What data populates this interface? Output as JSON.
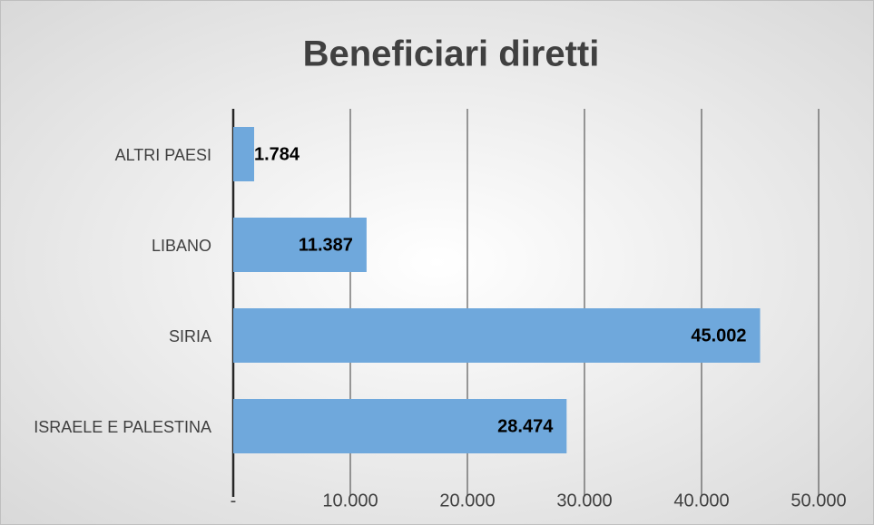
{
  "chart_data": {
    "type": "bar",
    "orientation": "horizontal",
    "title": "Beneficiari diretti",
    "categories": [
      "ALTRI PAESI",
      "LIBANO",
      "SIRIA",
      "ISRAELE E PALESTINA"
    ],
    "values": [
      1784,
      11387,
      45002,
      28474
    ],
    "value_labels": [
      "1.784",
      "11.387",
      "45.002",
      "28.474"
    ],
    "color": "#6fa8dc",
    "xlim": [
      0,
      50000
    ],
    "xticks": [
      {
        "value": 0,
        "label": "-"
      },
      {
        "value": 10000,
        "label": "10.000"
      },
      {
        "value": 20000,
        "label": "20.000"
      },
      {
        "value": 30000,
        "label": "30.000"
      },
      {
        "value": 40000,
        "label": "40.000"
      },
      {
        "value": 50000,
        "label": "50.000"
      }
    ],
    "grid": true
  }
}
